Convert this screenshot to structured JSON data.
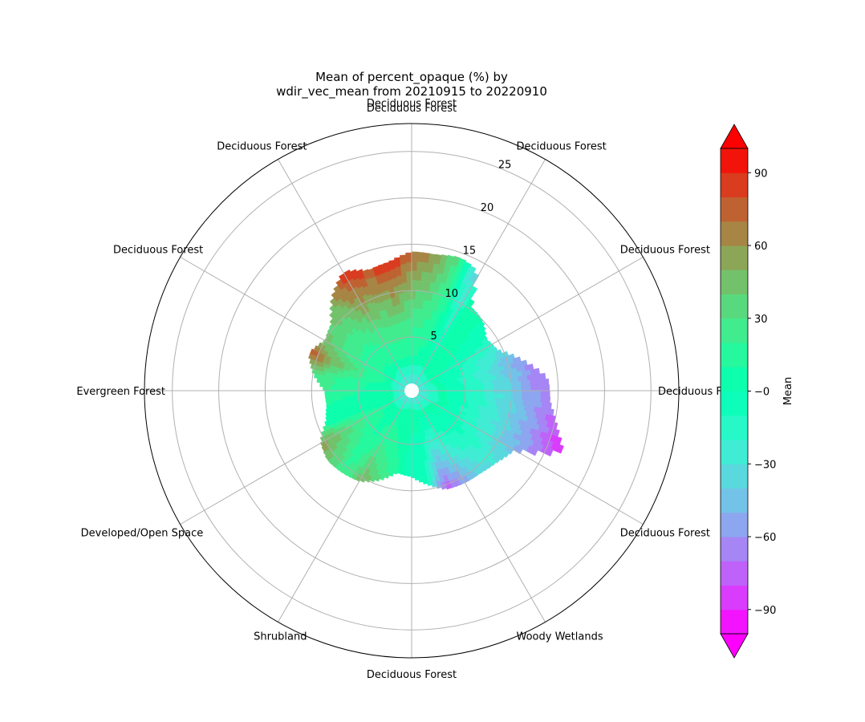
{
  "chart_data": {
    "type": "polar-contour",
    "title": [
      "Mean of percent_opaque (%) by",
      "wdir_vec_mean from 20210915 to 20220910"
    ],
    "radial_ticks": [
      5,
      10,
      15,
      20,
      25
    ],
    "radial_max": 28,
    "angular_labels": [
      {
        "angle_deg": 0,
        "label": "Deciduous Forest"
      },
      {
        "angle_deg": 30,
        "label": "Deciduous Forest"
      },
      {
        "angle_deg": 60,
        "label": "Deciduous Forest"
      },
      {
        "angle_deg": 90,
        "label": "Deciduous Forest"
      },
      {
        "angle_deg": 120,
        "label": "Deciduous Forest"
      },
      {
        "angle_deg": 150,
        "label": "Woody Wetlands"
      },
      {
        "angle_deg": 180,
        "label": "Deciduous Forest"
      },
      {
        "angle_deg": 210,
        "label": "Shrubland"
      },
      {
        "angle_deg": 240,
        "label": "Developed/Open Space"
      },
      {
        "angle_deg": 270,
        "label": "Evergreen Forest"
      },
      {
        "angle_deg": 300,
        "label": "Deciduous Forest"
      },
      {
        "angle_deg": 330,
        "label": "Deciduous Forest"
      }
    ],
    "grid": true,
    "outer_extent": [
      {
        "angle_deg": 0,
        "r": 14.2
      },
      {
        "angle_deg": 10,
        "r": 14.1
      },
      {
        "angle_deg": 20,
        "r": 14.5
      },
      {
        "angle_deg": 28,
        "r": 14.0
      },
      {
        "angle_deg": 35,
        "r": 10.3
      },
      {
        "angle_deg": 45,
        "r": 10.0
      },
      {
        "angle_deg": 55,
        "r": 9.0
      },
      {
        "angle_deg": 65,
        "r": 9.5
      },
      {
        "angle_deg": 75,
        "r": 11.7
      },
      {
        "angle_deg": 85,
        "r": 14.0
      },
      {
        "angle_deg": 95,
        "r": 14.2
      },
      {
        "angle_deg": 105,
        "r": 15.5
      },
      {
        "angle_deg": 112,
        "r": 16.8
      },
      {
        "angle_deg": 120,
        "r": 12.0
      },
      {
        "angle_deg": 130,
        "r": 11.2
      },
      {
        "angle_deg": 140,
        "r": 10.8
      },
      {
        "angle_deg": 150,
        "r": 10.7
      },
      {
        "angle_deg": 160,
        "r": 10.5
      },
      {
        "angle_deg": 170,
        "r": 9.5
      },
      {
        "angle_deg": 180,
        "r": 8.5
      },
      {
        "angle_deg": 190,
        "r": 8.2
      },
      {
        "angle_deg": 200,
        "r": 9.5
      },
      {
        "angle_deg": 210,
        "r": 10.5
      },
      {
        "angle_deg": 220,
        "r": 10.8
      },
      {
        "angle_deg": 230,
        "r": 11.0
      },
      {
        "angle_deg": 240,
        "r": 10.5
      },
      {
        "angle_deg": 250,
        "r": 9.0
      },
      {
        "angle_deg": 260,
        "r": 8.5
      },
      {
        "angle_deg": 270,
        "r": 8.6
      },
      {
        "angle_deg": 280,
        "r": 10.0
      },
      {
        "angle_deg": 290,
        "r": 11.0
      },
      {
        "angle_deg": 300,
        "r": 10.0
      },
      {
        "angle_deg": 310,
        "r": 10.5
      },
      {
        "angle_deg": 320,
        "r": 12.5
      },
      {
        "angle_deg": 330,
        "r": 14.0
      },
      {
        "angle_deg": 340,
        "r": 13.0
      },
      {
        "angle_deg": 350,
        "r": 13.3
      }
    ],
    "mean_by_direction": [
      {
        "angle_deg": 0,
        "mean": 75
      },
      {
        "angle_deg": 10,
        "mean": 60
      },
      {
        "angle_deg": 20,
        "mean": 30
      },
      {
        "angle_deg": 28,
        "mean": -40
      },
      {
        "angle_deg": 35,
        "mean": 10
      },
      {
        "angle_deg": 45,
        "mean": 0
      },
      {
        "angle_deg": 55,
        "mean": -10
      },
      {
        "angle_deg": 65,
        "mean": -30
      },
      {
        "angle_deg": 75,
        "mean": -60
      },
      {
        "angle_deg": 85,
        "mean": -75
      },
      {
        "angle_deg": 95,
        "mean": -70
      },
      {
        "angle_deg": 105,
        "mean": -80
      },
      {
        "angle_deg": 112,
        "mean": -90
      },
      {
        "angle_deg": 120,
        "mean": -50
      },
      {
        "angle_deg": 130,
        "mean": -30
      },
      {
        "angle_deg": 140,
        "mean": -40
      },
      {
        "angle_deg": 150,
        "mean": -60
      },
      {
        "angle_deg": 160,
        "mean": -80
      },
      {
        "angle_deg": 170,
        "mean": -10
      },
      {
        "angle_deg": 180,
        "mean": -10
      },
      {
        "angle_deg": 190,
        "mean": 10
      },
      {
        "angle_deg": 200,
        "mean": 30
      },
      {
        "angle_deg": 210,
        "mean": 50
      },
      {
        "angle_deg": 220,
        "mean": 20
      },
      {
        "angle_deg": 230,
        "mean": 45
      },
      {
        "angle_deg": 240,
        "mean": 60
      },
      {
        "angle_deg": 250,
        "mean": 0
      },
      {
        "angle_deg": 260,
        "mean": 10
      },
      {
        "angle_deg": 270,
        "mean": 20
      },
      {
        "angle_deg": 280,
        "mean": 30
      },
      {
        "angle_deg": 290,
        "mean": 80
      },
      {
        "angle_deg": 300,
        "mean": 45
      },
      {
        "angle_deg": 310,
        "mean": 40
      },
      {
        "angle_deg": 320,
        "mean": 60
      },
      {
        "angle_deg": 330,
        "mean": 95
      },
      {
        "angle_deg": 340,
        "mean": 80
      },
      {
        "angle_deg": 350,
        "mean": 95
      }
    ],
    "colorbar": {
      "label": "Mean",
      "vmin": -100,
      "vmax": 100,
      "ticks": [
        -90,
        -60,
        -30,
        0,
        30,
        60,
        90
      ],
      "tick_labels": [
        "−90",
        "−60",
        "−30",
        "−0",
        "30",
        "60",
        "90"
      ],
      "colormap": "rainbow",
      "extend": "both"
    }
  }
}
